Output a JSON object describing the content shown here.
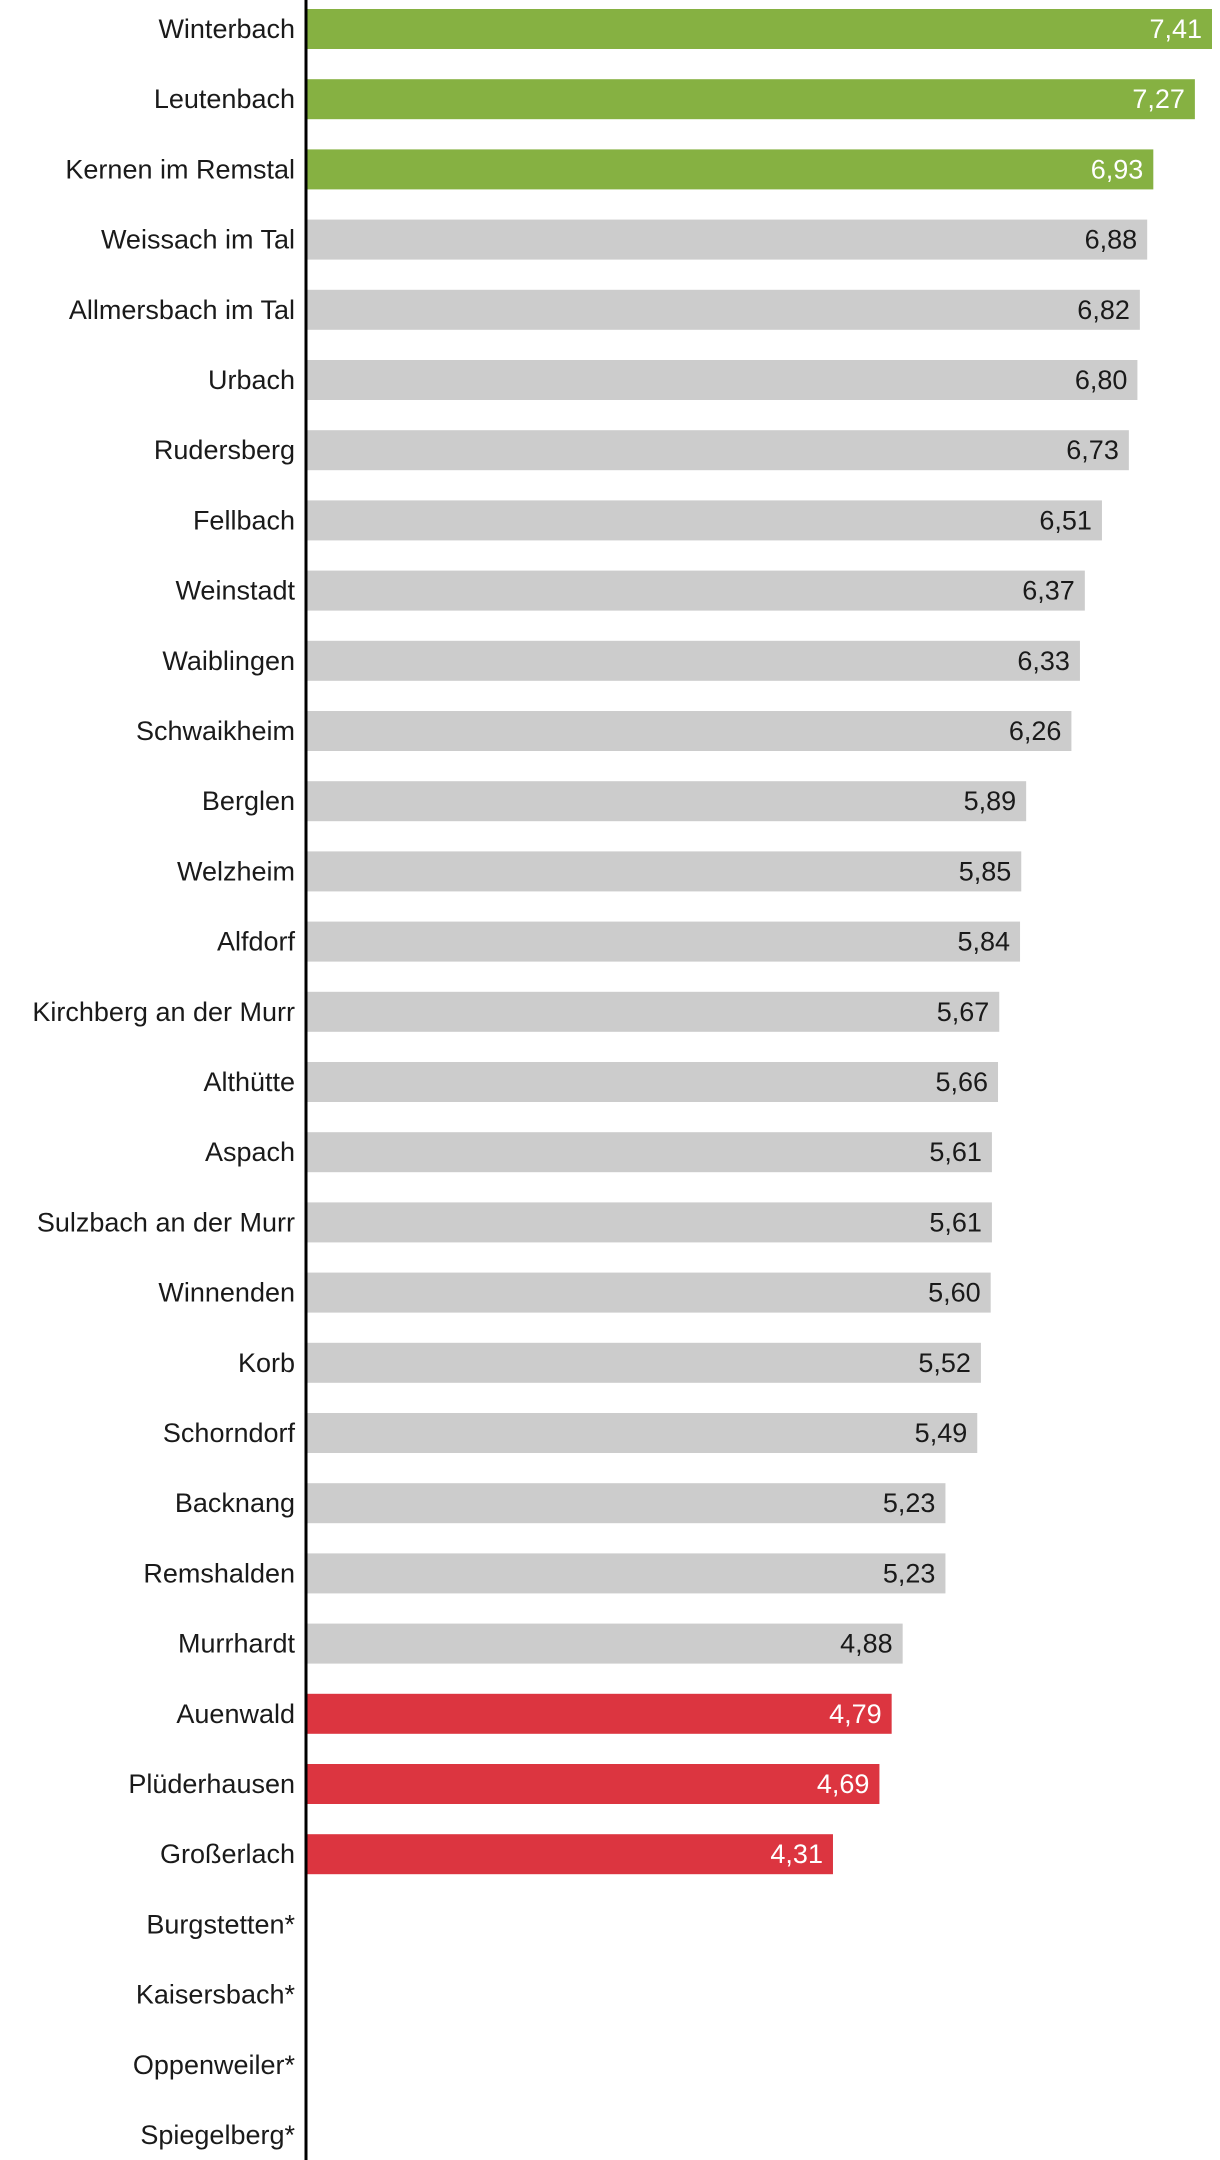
{
  "chart_data": {
    "type": "bar",
    "orientation": "horizontal",
    "title": "",
    "xlabel": "",
    "ylabel": "",
    "xlim": [
      0,
      7.41
    ],
    "grid": false,
    "legend": "none",
    "colors": {
      "top": "#86b142",
      "middle": "#cccccc",
      "bottom": "#dc3540",
      "axis": "#000000"
    },
    "categories": [
      "Winterbach",
      "Leutenbach",
      "Kernen im Remstal",
      "Weissach im Tal",
      "Allmersbach im Tal",
      "Urbach",
      "Rudersberg",
      "Fellbach",
      "Weinstadt",
      "Waiblingen",
      "Schwaikheim",
      "Berglen",
      "Welzheim",
      "Alfdorf",
      "Kirchberg an der Murr",
      "Althütte",
      "Aspach",
      "Sulzbach an der Murr",
      "Winnenden",
      "Korb",
      "Schorndorf",
      "Backnang",
      "Remshalden",
      "Murrhardt",
      "Auenwald",
      "Plüderhausen",
      "Großerlach",
      "Burgstetten*",
      "Kaisersbach*",
      "Oppenweiler*",
      "Spiegelberg*"
    ],
    "values": [
      7.41,
      7.27,
      6.93,
      6.88,
      6.82,
      6.8,
      6.73,
      6.51,
      6.37,
      6.33,
      6.26,
      5.89,
      5.85,
      5.84,
      5.67,
      5.66,
      5.61,
      5.61,
      5.6,
      5.52,
      5.49,
      5.23,
      5.23,
      4.88,
      4.79,
      4.69,
      4.31,
      null,
      null,
      null,
      null
    ],
    "value_labels": [
      "7,41",
      "7,27",
      "6,93",
      "6,88",
      "6,82",
      "6,80",
      "6,73",
      "6,51",
      "6,37",
      "6,33",
      "6,26",
      "5,89",
      "5,85",
      "5,84",
      "5,67",
      "5,66",
      "5,61",
      "5,61",
      "5,60",
      "5,52",
      "5,49",
      "5,23",
      "5,23",
      "4,88",
      "4,79",
      "4,69",
      "4,31",
      "",
      "",
      "",
      ""
    ],
    "groups": [
      "top",
      "top",
      "top",
      "middle",
      "middle",
      "middle",
      "middle",
      "middle",
      "middle",
      "middle",
      "middle",
      "middle",
      "middle",
      "middle",
      "middle",
      "middle",
      "middle",
      "middle",
      "middle",
      "middle",
      "middle",
      "middle",
      "middle",
      "middle",
      "bottom",
      "bottom",
      "bottom",
      "none",
      "none",
      "none",
      "none"
    ]
  }
}
